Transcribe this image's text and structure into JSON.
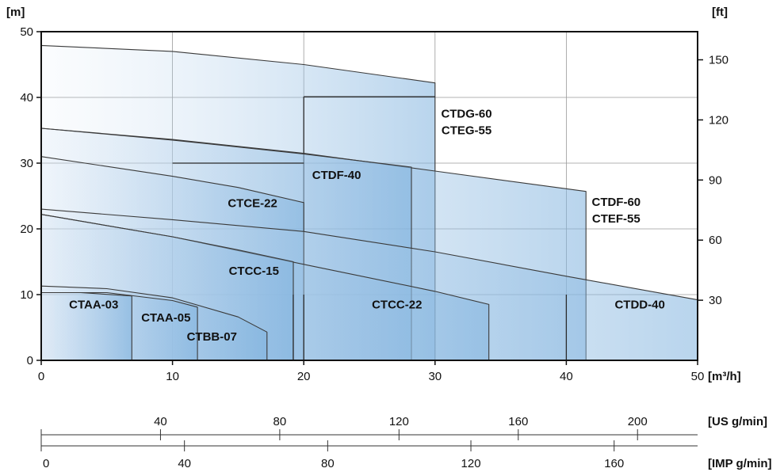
{
  "chart_data": {
    "type": "area",
    "title": "",
    "xlabel": "[m³/h]",
    "ylabel": "[m]",
    "ylabel_right": "[ft]",
    "xlim": [
      0,
      50
    ],
    "ylim": [
      0,
      50
    ],
    "grid": true,
    "x_ticks": [
      0,
      10,
      20,
      30,
      40,
      50
    ],
    "y_ticks": [
      0,
      10,
      20,
      30,
      40,
      50
    ],
    "right_axis": {
      "label": "[ft]",
      "ticks": [
        30,
        60,
        90,
        120,
        150
      ],
      "ft_per_m": 3.2808
    },
    "secondary_axes": [
      {
        "label": "[US g/min]",
        "ticks": [
          40,
          80,
          120,
          160,
          200
        ],
        "tick_labels": [
          "40",
          "80",
          "120",
          "160",
          "200"
        ],
        "units_per_m3h": 4.4029,
        "show_label_at_zero": false
      },
      {
        "label": "[IMP g/min]",
        "ticks": [
          0,
          40,
          80,
          120,
          160
        ],
        "tick_labels": [
          "0",
          "40",
          "80",
          "120",
          "160"
        ],
        "units_per_m3h": 3.6662,
        "show_label_at_zero": true
      }
    ],
    "regions": [
      {
        "name": "CTDG-60 / CTEG-55",
        "labels": [
          "CTDG-60",
          "CTEG-55"
        ],
        "polygon": [
          [
            0,
            47.9
          ],
          [
            10,
            47.0
          ],
          [
            20,
            45.0
          ],
          [
            30,
            42.2
          ],
          [
            30,
            0
          ],
          [
            0,
            0
          ]
        ],
        "internal_lines": [
          [
            [
              20,
              40.1
            ],
            [
              30,
              40.1
            ]
          ],
          [
            [
              20,
              40.1
            ],
            [
              20,
              0
            ]
          ]
        ],
        "label_at": [
          32.4,
          36.9
        ]
      },
      {
        "name": "CTDF-60 / CTEF-55",
        "labels": [
          "CTDF-60",
          "CTEF-55"
        ],
        "polygon": [
          [
            0,
            35.3
          ],
          [
            10,
            33.6
          ],
          [
            20,
            31.5
          ],
          [
            30,
            28.8
          ],
          [
            41.5,
            25.7
          ],
          [
            41.5,
            0
          ],
          [
            0,
            0
          ]
        ],
        "internal_lines": [],
        "label_at": [
          43.8,
          23.5
        ]
      },
      {
        "name": "CTDF-40",
        "labels": [
          "CTDF-40"
        ],
        "polygon": [
          [
            0,
            35.3
          ],
          [
            10,
            33.5
          ],
          [
            20,
            31.4
          ],
          [
            28.2,
            29.4
          ],
          [
            28.2,
            0
          ],
          [
            0,
            0
          ]
        ],
        "internal_lines": [
          [
            [
              10,
              30.0
            ],
            [
              20,
              30.0
            ]
          ]
        ],
        "label_at": [
          22.5,
          27.6
        ]
      },
      {
        "name": "CTCE-22",
        "labels": [
          "CTCE-22"
        ],
        "polygon": [
          [
            0,
            31.0
          ],
          [
            10,
            28.0
          ],
          [
            15,
            26.3
          ],
          [
            20,
            24.0
          ],
          [
            20,
            0
          ],
          [
            0,
            0
          ]
        ],
        "internal_lines": [],
        "label_at": [
          16.1,
          23.3
        ]
      },
      {
        "name": "CTDD-40",
        "labels": [
          "CTDD-40"
        ],
        "polygon": [
          [
            0,
            23.0
          ],
          [
            10,
            21.4
          ],
          [
            20,
            19.6
          ],
          [
            30,
            16.5
          ],
          [
            40,
            12.8
          ],
          [
            50,
            9.2
          ],
          [
            50,
            0
          ],
          [
            0,
            0
          ]
        ],
        "internal_lines": [
          [
            [
              40,
              10.0
            ],
            [
              40,
              0
            ]
          ]
        ],
        "label_at": [
          45.6,
          7.9
        ]
      },
      {
        "name": "CTCC-22",
        "labels": [
          "CTCC-22"
        ],
        "polygon": [
          [
            0,
            22.2
          ],
          [
            10,
            18.8
          ],
          [
            20,
            14.6
          ],
          [
            30,
            10.5
          ],
          [
            34.1,
            8.5
          ],
          [
            34.1,
            0
          ],
          [
            0,
            0
          ]
        ],
        "internal_lines": [
          [
            [
              20,
              10.0
            ],
            [
              20,
              0
            ]
          ]
        ],
        "label_at": [
          27.1,
          7.9
        ]
      },
      {
        "name": "CTCC-15",
        "labels": [
          "CTCC-15"
        ],
        "polygon": [
          [
            0,
            22.2
          ],
          [
            10,
            18.8
          ],
          [
            15,
            16.8
          ],
          [
            19.2,
            15.0
          ],
          [
            19.2,
            0
          ],
          [
            0,
            0
          ]
        ],
        "internal_lines": [
          [
            [
              19.2,
              10.0
            ],
            [
              19.2,
              0
            ]
          ]
        ],
        "label_at": [
          16.2,
          13.0
        ]
      },
      {
        "name": "CTBB-07",
        "labels": [
          "CTBB-07"
        ],
        "polygon": [
          [
            0,
            11.3
          ],
          [
            5,
            10.9
          ],
          [
            10,
            9.5
          ],
          [
            15,
            6.6
          ],
          [
            17.2,
            4.3
          ],
          [
            17.2,
            0
          ],
          [
            0,
            0
          ]
        ],
        "internal_lines": [],
        "label_at": [
          13.0,
          3.0
        ]
      },
      {
        "name": "CTAA-05",
        "labels": [
          "CTAA-05"
        ],
        "polygon": [
          [
            0,
            10.3
          ],
          [
            5,
            10.3
          ],
          [
            10,
            9.1
          ],
          [
            11.9,
            8.1
          ],
          [
            11.9,
            0
          ],
          [
            0,
            0
          ]
        ],
        "internal_lines": [],
        "label_at": [
          9.5,
          5.9
        ]
      },
      {
        "name": "CTAA-03",
        "labels": [
          "CTAA-03"
        ],
        "polygon": [
          [
            0,
            10.3
          ],
          [
            3,
            10.3
          ],
          [
            6.9,
            9.8
          ],
          [
            6.9,
            0
          ],
          [
            0,
            0
          ]
        ],
        "internal_lines": [],
        "label_at": [
          4.0,
          7.9
        ]
      }
    ]
  }
}
